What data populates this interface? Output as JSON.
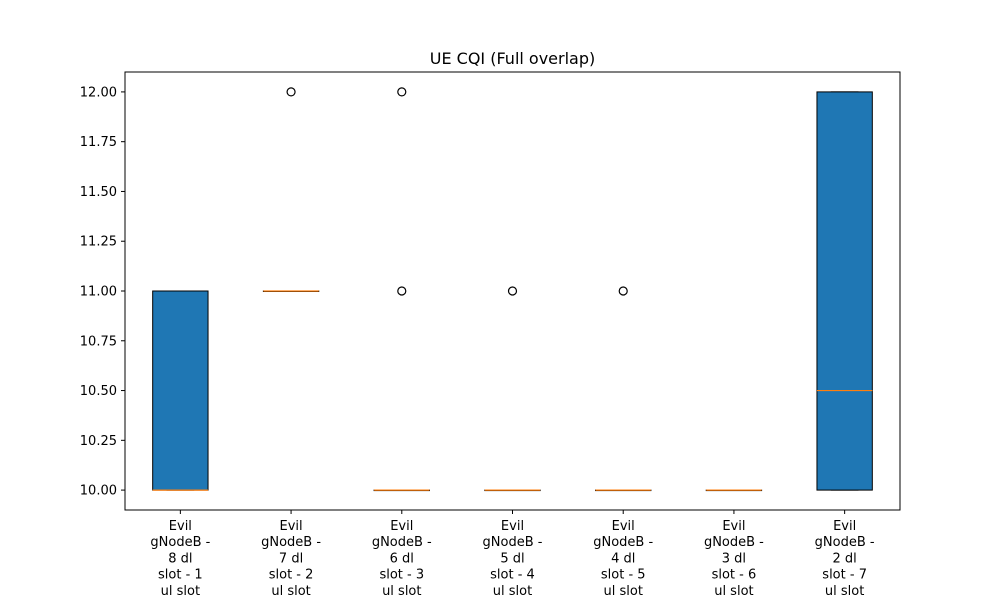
{
  "chart_data": {
    "type": "box",
    "title": "UE CQI (Full overlap)",
    "xlabel": "",
    "ylabel": "",
    "ylim": [
      9.9,
      12.1
    ],
    "yticks": [
      "10.00",
      "10.25",
      "10.50",
      "10.75",
      "11.00",
      "11.25",
      "11.50",
      "11.75",
      "12.00"
    ],
    "grid": false,
    "colors": {
      "box_fill": "#1f77b4",
      "median": "#ff7f0e",
      "edge": "#000000"
    },
    "categories": [
      "Evil gNodeB - 8 dl slot - 1 ul slot",
      "Evil gNodeB - 7 dl slot - 2 ul slot",
      "Evil gNodeB - 6 dl slot - 3 ul slot",
      "Evil gNodeB - 5 dl slot - 4 ul slot",
      "Evil gNodeB - 4 dl slot - 5 ul slot",
      "Evil gNodeB - 3 dl slot - 6 ul slot",
      "Evil gNodeB - 2 dl slot - 7 ul slot"
    ],
    "category_lines": [
      [
        "Evil",
        "gNodeB -",
        "8 dl",
        "slot - 1",
        "ul slot"
      ],
      [
        "Evil",
        "gNodeB -",
        "7 dl",
        "slot - 2",
        "ul slot"
      ],
      [
        "Evil",
        "gNodeB -",
        "6 dl",
        "slot - 3",
        "ul slot"
      ],
      [
        "Evil",
        "gNodeB -",
        "5 dl",
        "slot - 4",
        "ul slot"
      ],
      [
        "Evil",
        "gNodeB -",
        "4 dl",
        "slot - 5",
        "ul slot"
      ],
      [
        "Evil",
        "gNodeB -",
        "3 dl",
        "slot - 6",
        "ul slot"
      ],
      [
        "Evil",
        "gNodeB -",
        "2 dl",
        "slot - 7",
        "ul slot"
      ]
    ],
    "boxes": [
      {
        "whislo": 10,
        "q1": 10,
        "median": 10,
        "q3": 11,
        "whishi": 11,
        "fliers": []
      },
      {
        "whislo": 11,
        "q1": 11,
        "median": 11,
        "q3": 11,
        "whishi": 11,
        "fliers": [
          12
        ]
      },
      {
        "whislo": 10,
        "q1": 10,
        "median": 10,
        "q3": 10,
        "whishi": 10,
        "fliers": [
          11,
          12
        ]
      },
      {
        "whislo": 10,
        "q1": 10,
        "median": 10,
        "q3": 10,
        "whishi": 10,
        "fliers": [
          11
        ]
      },
      {
        "whislo": 10,
        "q1": 10,
        "median": 10,
        "q3": 10,
        "whishi": 10,
        "fliers": [
          11
        ]
      },
      {
        "whislo": 10,
        "q1": 10,
        "median": 10,
        "q3": 10,
        "whishi": 10,
        "fliers": []
      },
      {
        "whislo": 10,
        "q1": 10,
        "median": 10.5,
        "q3": 12,
        "whishi": 12,
        "fliers": []
      }
    ]
  }
}
